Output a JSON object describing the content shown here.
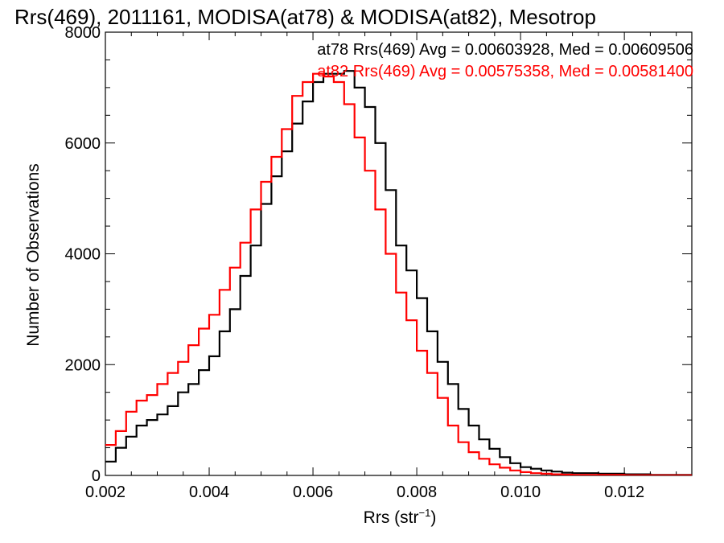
{
  "chart_data": {
    "type": "line",
    "title": "Rrs(469), 2011161, MODISA(at78) & MODISA(at82), Mesotrop",
    "xlabel": "Rrs (str",
    "xlabel_sup": "−1",
    "xlabel_close": ")",
    "ylabel": "Number of Observations",
    "xlim": [
      0.002,
      0.0133
    ],
    "ylim": [
      0,
      8000
    ],
    "x_ticks": [
      0.002,
      0.004,
      0.006,
      0.008,
      0.01,
      0.012
    ],
    "x_tick_labels": [
      "0.002",
      "0.004",
      "0.006",
      "0.008",
      "0.010",
      "0.012"
    ],
    "y_ticks": [
      0,
      2000,
      4000,
      6000,
      8000
    ],
    "y_tick_labels": [
      "0",
      "2000",
      "4000",
      "6000",
      "8000"
    ],
    "step": "histogram",
    "grid": false,
    "legend_position": "top-right",
    "series": [
      {
        "name": "at78 Rrs(469) Avg = 0.00603928, Med = 0.00609506",
        "color": "#000000",
        "x": [
          0.002,
          0.0022,
          0.0024,
          0.0026,
          0.0028,
          0.003,
          0.0032,
          0.0034,
          0.0036,
          0.0038,
          0.004,
          0.0042,
          0.0044,
          0.0046,
          0.0048,
          0.005,
          0.0052,
          0.0054,
          0.0056,
          0.0058,
          0.006,
          0.0062,
          0.0064,
          0.0066,
          0.0068,
          0.007,
          0.0072,
          0.0074,
          0.0076,
          0.0078,
          0.008,
          0.0082,
          0.0084,
          0.0086,
          0.0088,
          0.009,
          0.0092,
          0.0094,
          0.0096,
          0.0098,
          0.01,
          0.0102,
          0.0104,
          0.0106,
          0.0108,
          0.011,
          0.0115,
          0.012,
          0.0125,
          0.013,
          0.0133
        ],
        "y": [
          250,
          500,
          700,
          900,
          1000,
          1100,
          1250,
          1500,
          1650,
          1900,
          2150,
          2600,
          3000,
          3600,
          4150,
          4900,
          5400,
          5850,
          6350,
          6750,
          7100,
          7250,
          7250,
          7300,
          7000,
          6650,
          6000,
          5150,
          4150,
          3700,
          3200,
          2600,
          2050,
          1650,
          1200,
          900,
          650,
          480,
          330,
          220,
          150,
          120,
          90,
          70,
          50,
          40,
          30,
          20,
          10,
          8,
          5
        ]
      },
      {
        "name": "at82 Rrs(469) Avg = 0.00575358, Med = 0.00581400",
        "color": "#ff0000",
        "x": [
          0.002,
          0.0022,
          0.0024,
          0.0026,
          0.0028,
          0.003,
          0.0032,
          0.0034,
          0.0036,
          0.0038,
          0.004,
          0.0042,
          0.0044,
          0.0046,
          0.0048,
          0.005,
          0.0052,
          0.0054,
          0.0056,
          0.0058,
          0.006,
          0.0062,
          0.0064,
          0.0066,
          0.0068,
          0.007,
          0.0072,
          0.0074,
          0.0076,
          0.0078,
          0.008,
          0.0082,
          0.0084,
          0.0086,
          0.0088,
          0.009,
          0.0092,
          0.0094,
          0.0096,
          0.0098,
          0.01,
          0.0102,
          0.0104,
          0.0106,
          0.0108,
          0.011,
          0.0115,
          0.012,
          0.0125,
          0.013,
          0.0133
        ],
        "y": [
          550,
          800,
          1150,
          1350,
          1450,
          1650,
          1850,
          2050,
          2350,
          2650,
          2900,
          3350,
          3750,
          4200,
          4800,
          5300,
          5750,
          6250,
          6850,
          7100,
          7250,
          7200,
          7100,
          6700,
          6100,
          5500,
          4800,
          4000,
          3300,
          2800,
          2250,
          1850,
          1400,
          900,
          600,
          420,
          300,
          200,
          140,
          90,
          60,
          40,
          30,
          20,
          15,
          10,
          8,
          5,
          3,
          2,
          1
        ]
      }
    ]
  }
}
